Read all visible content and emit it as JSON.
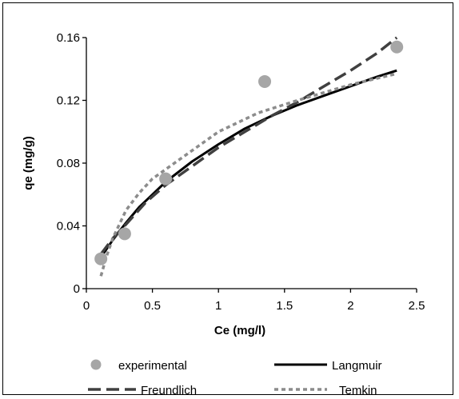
{
  "chart_data": {
    "type": "scatter",
    "xlabel": "Ce (mg/l)",
    "ylabel": "qe (mg/g)",
    "xlim": [
      0,
      2.5
    ],
    "ylim": [
      0,
      0.16
    ],
    "x_ticks": [
      "0",
      "0.5",
      "1",
      "1.5",
      "2",
      "2.5"
    ],
    "y_ticks": [
      "0",
      "0.04",
      "0.08",
      "0.12",
      "0.16"
    ],
    "grid": false,
    "legend_position": "bottom",
    "series": [
      {
        "name": "experimental",
        "style": "markers",
        "color": "#a6a6a6",
        "x": [
          0.11,
          0.29,
          0.6,
          1.35,
          2.35
        ],
        "y": [
          0.019,
          0.035,
          0.07,
          0.132,
          0.154
        ]
      },
      {
        "name": "Langmuir",
        "style": "solid",
        "color": "#000000",
        "x": [
          0.11,
          0.2,
          0.3,
          0.4,
          0.5,
          0.6,
          0.8,
          1.0,
          1.2,
          1.4,
          1.6,
          1.8,
          2.0,
          2.2,
          2.35
        ],
        "y": [
          0.02,
          0.031,
          0.042,
          0.052,
          0.06,
          0.068,
          0.081,
          0.092,
          0.102,
          0.11,
          0.117,
          0.123,
          0.129,
          0.135,
          0.139
        ]
      },
      {
        "name": "Freundlich",
        "style": "dashed",
        "color": "#404040",
        "x": [
          0.11,
          0.2,
          0.3,
          0.45,
          0.6,
          0.8,
          1.0,
          1.2,
          1.4,
          1.6,
          1.8,
          2.0,
          2.2,
          2.35
        ],
        "y": [
          0.022,
          0.032,
          0.041,
          0.055,
          0.066,
          0.078,
          0.09,
          0.1,
          0.11,
          0.119,
          0.129,
          0.139,
          0.15,
          0.16
        ]
      },
      {
        "name": "Temkin",
        "style": "dotted",
        "color": "#8c8c8c",
        "x": [
          0.11,
          0.15,
          0.2,
          0.3,
          0.4,
          0.5,
          0.7,
          1.0,
          1.3,
          1.6,
          2.0,
          2.35
        ],
        "y": [
          0.008,
          0.02,
          0.032,
          0.05,
          0.061,
          0.07,
          0.082,
          0.1,
          0.112,
          0.12,
          0.13,
          0.137
        ]
      }
    ]
  }
}
